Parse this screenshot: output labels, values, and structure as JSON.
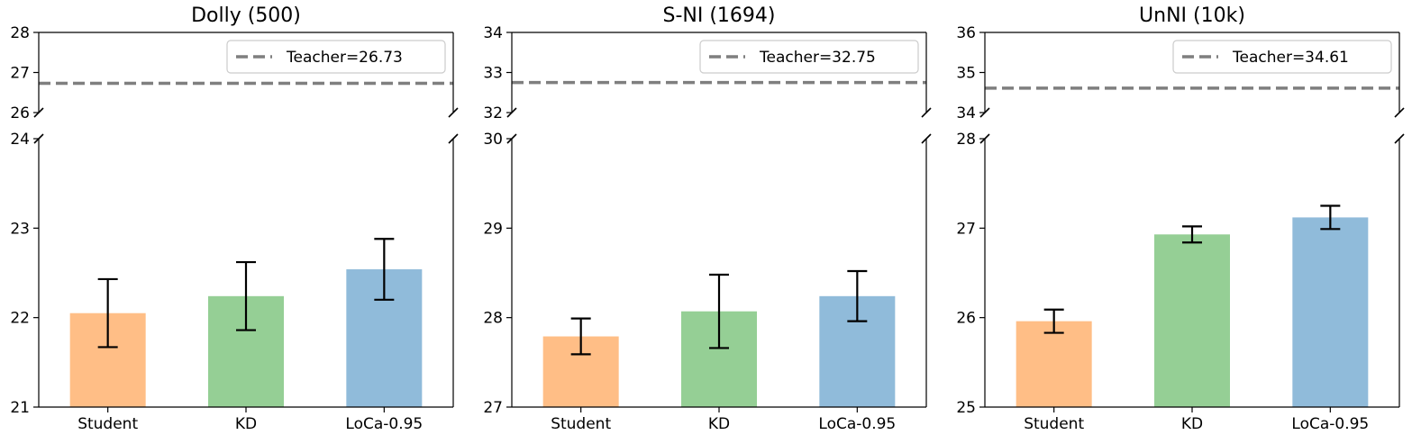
{
  "chart_data": [
    {
      "type": "bar",
      "title": "Dolly (500)",
      "categories": [
        "Student",
        "KD",
        "LoCa-0.95"
      ],
      "values": [
        22.05,
        22.24,
        22.54
      ],
      "errors": [
        0.38,
        0.38,
        0.34
      ],
      "colors": [
        "#ffbe86",
        "#95cf95",
        "#90bbda"
      ],
      "teacher": 26.73,
      "teacher_label": "Teacher=26.73",
      "upper_ylim": [
        26,
        28
      ],
      "upper_ticks": [
        26,
        27,
        28
      ],
      "lower_ylim": [
        21,
        24
      ],
      "lower_ticks": [
        21,
        22,
        23,
        24
      ]
    },
    {
      "type": "bar",
      "title": "S-NI (1694)",
      "categories": [
        "Student",
        "KD",
        "LoCa-0.95"
      ],
      "values": [
        27.79,
        28.07,
        28.24
      ],
      "errors": [
        0.2,
        0.41,
        0.28
      ],
      "colors": [
        "#ffbe86",
        "#95cf95",
        "#90bbda"
      ],
      "teacher": 32.75,
      "teacher_label": "Teacher=32.75",
      "upper_ylim": [
        32,
        34
      ],
      "upper_ticks": [
        32,
        33,
        34
      ],
      "lower_ylim": [
        27,
        30
      ],
      "lower_ticks": [
        27,
        28,
        29,
        30
      ]
    },
    {
      "type": "bar",
      "title": "UnNI (10k)",
      "categories": [
        "Student",
        "KD",
        "LoCa-0.95"
      ],
      "values": [
        25.96,
        26.93,
        27.12
      ],
      "errors": [
        0.13,
        0.09,
        0.13
      ],
      "colors": [
        "#ffbe86",
        "#95cf95",
        "#90bbda"
      ],
      "teacher": 34.61,
      "teacher_label": "Teacher=34.61",
      "upper_ylim": [
        34,
        36
      ],
      "upper_ticks": [
        34,
        35,
        36
      ],
      "lower_ylim": [
        25,
        28
      ],
      "lower_ticks": [
        25,
        26,
        27,
        28
      ]
    }
  ]
}
